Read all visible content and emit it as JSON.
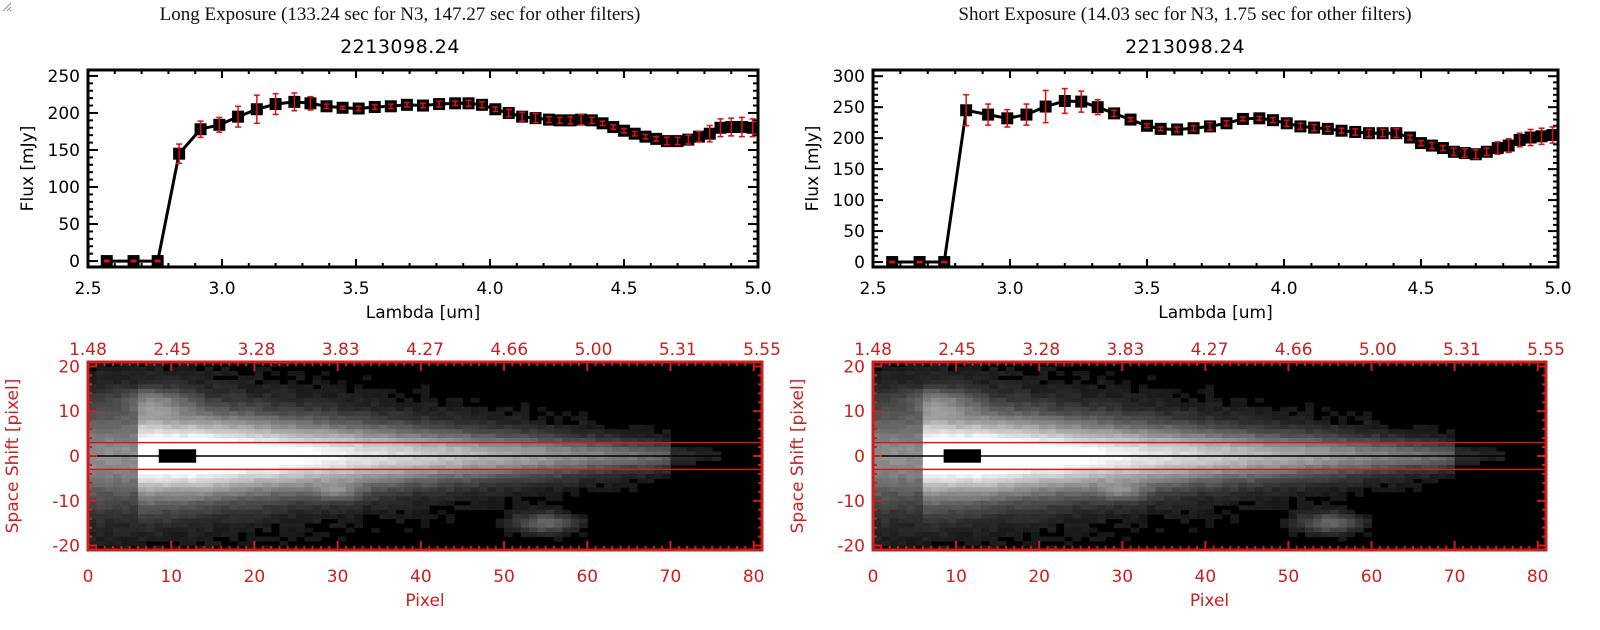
{
  "colors": {
    "axis": "#000000",
    "err": "#e01010",
    "img_axis": "#cc1f1f",
    "line": "#000000"
  },
  "chart_data": [
    {
      "type": "line",
      "title": "Long Exposure (133.24 sec for N3, 147.27 sec for other filters)",
      "subtitle": "2213098.24",
      "xlabel": "Lambda [um]",
      "ylabel": "Flux [mJy]",
      "xlim": [
        2.5,
        5.0
      ],
      "ylim": [
        -8,
        258
      ],
      "xticks": [
        "2.5",
        "3.0",
        "3.5",
        "4.0",
        "4.5",
        "5.0"
      ],
      "xtick_values": [
        2.5,
        3.0,
        3.5,
        4.0,
        4.5,
        5.0
      ],
      "yticks": [
        "0",
        "50",
        "100",
        "150",
        "200",
        "250"
      ],
      "ytick_values": [
        0,
        50,
        100,
        150,
        200,
        250
      ],
      "grid": false,
      "series": [
        {
          "name": "flux",
          "x": [
            2.57,
            2.67,
            2.76,
            2.84,
            2.92,
            2.99,
            3.06,
            3.13,
            3.2,
            3.27,
            3.33,
            3.39,
            3.45,
            3.51,
            3.57,
            3.63,
            3.69,
            3.75,
            3.81,
            3.87,
            3.92,
            3.97,
            4.02,
            4.07,
            4.12,
            4.17,
            4.22,
            4.26,
            4.3,
            4.34,
            4.38,
            4.42,
            4.46,
            4.5,
            4.54,
            4.58,
            4.62,
            4.66,
            4.7,
            4.74,
            4.78,
            4.82,
            4.86,
            4.9,
            4.94,
            4.98
          ],
          "y": [
            0,
            0,
            0,
            145,
            178,
            184,
            195,
            205,
            212,
            215,
            213,
            209,
            207,
            206,
            208,
            209,
            211,
            210,
            212,
            213,
            213,
            211,
            205,
            200,
            195,
            193,
            191,
            190,
            190,
            191,
            190,
            186,
            181,
            176,
            172,
            168,
            165,
            162,
            162,
            164,
            168,
            172,
            180,
            181,
            181,
            180
          ],
          "err": [
            1,
            1,
            1,
            13,
            11,
            10,
            14,
            19,
            14,
            12,
            9,
            3,
            2,
            3,
            3,
            3,
            3,
            3,
            4,
            3,
            4,
            4,
            3,
            5,
            6,
            6,
            4,
            4,
            5,
            7,
            4,
            3,
            3,
            3,
            3,
            3,
            3,
            5,
            5,
            6,
            7,
            11,
            12,
            12,
            13,
            12
          ]
        }
      ]
    },
    {
      "type": "line",
      "title": "Short Exposure (14.03 sec for N3, 1.75 sec for other filters)",
      "subtitle": "2213098.24",
      "xlabel": "Lambda [um]",
      "ylabel": "Flux [mJy]",
      "xlim": [
        2.5,
        5.0
      ],
      "ylim": [
        -8,
        310
      ],
      "xticks": [
        "2.5",
        "3.0",
        "3.5",
        "4.0",
        "4.5",
        "5.0"
      ],
      "xtick_values": [
        2.5,
        3.0,
        3.5,
        4.0,
        4.5,
        5.0
      ],
      "yticks": [
        "0",
        "50",
        "100",
        "150",
        "200",
        "250",
        "300"
      ],
      "ytick_values": [
        0,
        50,
        100,
        150,
        200,
        250,
        300
      ],
      "grid": false,
      "series": [
        {
          "name": "flux",
          "x": [
            2.57,
            2.67,
            2.76,
            2.84,
            2.92,
            2.99,
            3.06,
            3.13,
            3.2,
            3.26,
            3.32,
            3.38,
            3.44,
            3.5,
            3.55,
            3.61,
            3.67,
            3.73,
            3.79,
            3.85,
            3.91,
            3.96,
            4.01,
            4.06,
            4.11,
            4.16,
            4.21,
            4.26,
            4.31,
            4.36,
            4.41,
            4.46,
            4.5,
            4.54,
            4.58,
            4.62,
            4.66,
            4.7,
            4.74,
            4.78,
            4.82,
            4.86,
            4.9,
            4.94,
            4.98
          ],
          "y": [
            0,
            0,
            0,
            245,
            238,
            232,
            238,
            251,
            260,
            259,
            250,
            240,
            230,
            220,
            215,
            214,
            216,
            219,
            224,
            231,
            232,
            229,
            224,
            219,
            217,
            215,
            212,
            210,
            208,
            208,
            208,
            201,
            192,
            188,
            184,
            178,
            176,
            174,
            178,
            184,
            188,
            197,
            201,
            203,
            205
          ],
          "err": [
            1,
            1,
            1,
            25,
            17,
            14,
            17,
            26,
            20,
            17,
            12,
            5,
            3,
            3,
            3,
            4,
            4,
            6,
            4,
            3,
            3,
            4,
            5,
            5,
            5,
            4,
            4,
            5,
            6,
            6,
            7,
            4,
            4,
            5,
            4,
            6,
            7,
            7,
            6,
            10,
            11,
            11,
            13,
            13,
            13
          ]
        }
      ]
    }
  ],
  "images": [
    {
      "top_axis_ticks": [
        "1.48",
        "2.45",
        "3.28",
        "3.83",
        "4.27",
        "4.66",
        "5.00",
        "5.31",
        "5.55"
      ],
      "bottom_axis_ticks": [
        "0",
        "10",
        "20",
        "30",
        "40",
        "50",
        "60",
        "70",
        "80"
      ],
      "bottom_tick_values": [
        0,
        10,
        20,
        30,
        40,
        50,
        60,
        70,
        80
      ],
      "left_axis_ticks": [
        "20",
        "10",
        "0",
        "-10",
        "-20"
      ],
      "left_tick_values": [
        20,
        10,
        0,
        -10,
        -20
      ],
      "xlabel": "Pixel",
      "ylabel": "Space Shift [pixel]",
      "xlim": [
        0,
        81
      ],
      "ylim": [
        -21,
        21
      ],
      "aperture_lines": [
        3,
        -3
      ]
    },
    {
      "top_axis_ticks": [
        "1.48",
        "2.45",
        "3.28",
        "3.83",
        "4.27",
        "4.66",
        "5.00",
        "5.31",
        "5.55"
      ],
      "bottom_axis_ticks": [
        "0",
        "10",
        "20",
        "30",
        "40",
        "50",
        "60",
        "70",
        "80"
      ],
      "bottom_tick_values": [
        0,
        10,
        20,
        30,
        40,
        50,
        60,
        70,
        80
      ],
      "left_axis_ticks": [
        "20",
        "10",
        "0",
        "-10",
        "-20"
      ],
      "left_tick_values": [
        20,
        10,
        0,
        -10,
        -20
      ],
      "xlabel": "Pixel",
      "ylabel": "Space Shift [pixel]",
      "xlim": [
        0,
        81
      ],
      "ylim": [
        -21,
        21
      ],
      "aperture_lines": [
        3,
        -3
      ]
    }
  ]
}
